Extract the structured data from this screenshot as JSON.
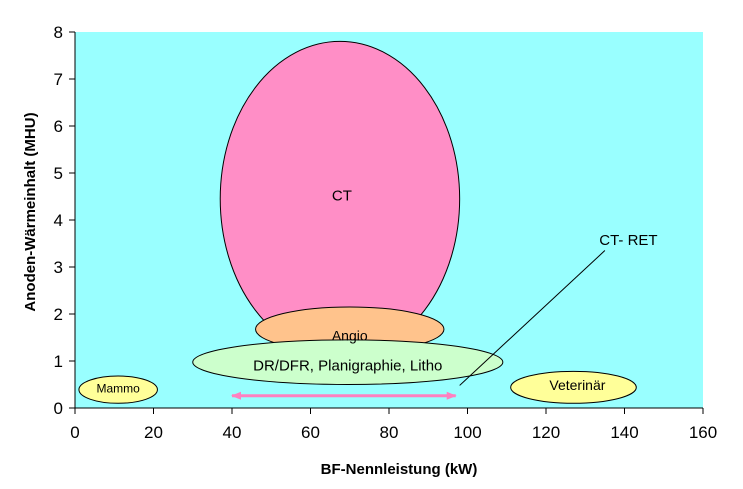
{
  "chart_data": {
    "type": "scatter",
    "title": "",
    "xlabel": "BF-Nennleistung (kW)",
    "ylabel": "Anoden-Wärmeinhalt (MHU)",
    "xlim": [
      0,
      160
    ],
    "ylim": [
      0,
      8
    ],
    "x_ticks": [
      "0",
      "20",
      "40",
      "60",
      "80",
      "100",
      "120",
      "140",
      "160"
    ],
    "y_ticks": [
      "0",
      "1",
      "2",
      "3",
      "4",
      "5",
      "6",
      "7",
      "8"
    ],
    "grid": false,
    "plot_background": "#99ffff",
    "regions": [
      {
        "label": "CT",
        "shape": "ellipse",
        "x_range": [
          37,
          98
        ],
        "y_range": [
          1.1,
          7.8
        ],
        "label_at": [
          68,
          4.5
        ],
        "color": "#ff8ec6"
      },
      {
        "label": "Angio",
        "shape": "ellipse",
        "x_range": [
          46,
          94
        ],
        "y_range": [
          1.2,
          2.15
        ],
        "label_at": [
          70,
          1.52
        ],
        "color": "#ffc38c"
      },
      {
        "label": "DR/DFR, Planigraphie, Litho",
        "shape": "ellipse",
        "x_range": [
          30,
          109
        ],
        "y_range": [
          0.5,
          1.45
        ],
        "label_at": [
          69.5,
          0.88
        ],
        "color": "#ccffcc"
      },
      {
        "label": "Mammo",
        "shape": "ellipse",
        "x_range": [
          1,
          21
        ],
        "y_range": [
          0.1,
          0.68
        ],
        "label_at": [
          11,
          0.4
        ],
        "color": "#ffff99"
      },
      {
        "label": "Veterinär",
        "shape": "ellipse",
        "x_range": [
          111,
          143
        ],
        "y_range": [
          0.1,
          0.78
        ],
        "label_at": [
          128,
          0.46
        ],
        "color": "#ffff99"
      }
    ],
    "annotations": [
      {
        "label": "CT- RET",
        "label_at": [
          141,
          3.55
        ],
        "line_from": [
          135,
          3.35
        ],
        "line_to": [
          98,
          0.48
        ]
      }
    ],
    "range_arrow": {
      "from": 40,
      "to": 97,
      "y": 0.26,
      "color": "#ff80c0"
    }
  }
}
